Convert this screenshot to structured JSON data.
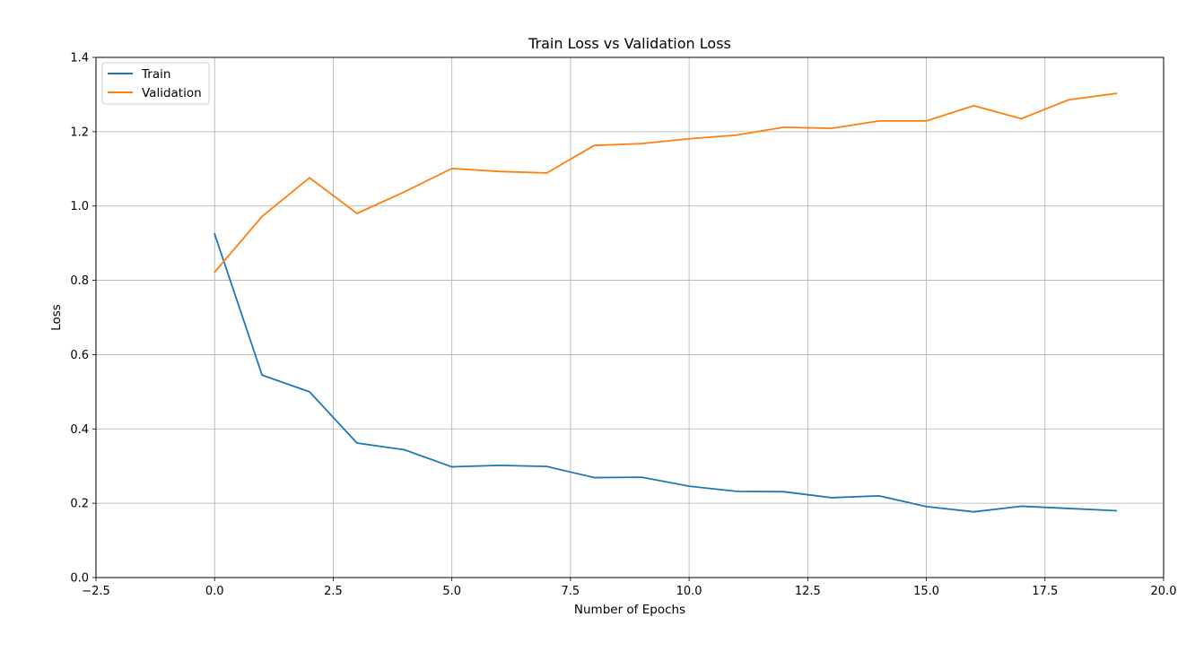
{
  "chart_data": {
    "type": "line",
    "title": "Train Loss vs Validation Loss",
    "xlabel": "Number of Epochs",
    "ylabel": "Loss",
    "xlim": [
      -2.5,
      20.0
    ],
    "ylim": [
      0.0,
      1.4
    ],
    "xticks": [
      -2.5,
      0.0,
      2.5,
      5.0,
      7.5,
      10.0,
      12.5,
      15.0,
      17.5,
      20.0
    ],
    "xtick_labels": [
      "−2.5",
      "0.0",
      "2.5",
      "5.0",
      "7.5",
      "10.0",
      "12.5",
      "15.0",
      "17.5",
      "20.0"
    ],
    "yticks": [
      0.0,
      0.2,
      0.4,
      0.6,
      0.8,
      1.0,
      1.2,
      1.4
    ],
    "ytick_labels": [
      "0.0",
      "0.2",
      "0.4",
      "0.6",
      "0.8",
      "1.0",
      "1.2",
      "1.4"
    ],
    "grid": true,
    "legend_position": "top-left",
    "x": [
      0,
      1,
      2,
      3,
      4,
      5,
      6,
      7,
      8,
      9,
      10,
      11,
      12,
      13,
      14,
      15,
      16,
      17,
      18,
      19
    ],
    "series": [
      {
        "name": "Train",
        "color": "#1f77b4",
        "values": [
          0.925,
          0.545,
          0.5,
          0.362,
          0.344,
          0.298,
          0.302,
          0.299,
          0.269,
          0.27,
          0.246,
          0.232,
          0.231,
          0.215,
          0.22,
          0.191,
          0.177,
          0.192,
          0.186,
          0.18
        ]
      },
      {
        "name": "Validation",
        "color": "#ff7f0e",
        "values": [
          0.822,
          0.972,
          1.076,
          0.98,
          1.038,
          1.101,
          1.093,
          1.089,
          1.163,
          1.168,
          1.181,
          1.191,
          1.212,
          1.209,
          1.229,
          1.229,
          1.27,
          1.235,
          1.286,
          1.303
        ]
      }
    ]
  }
}
